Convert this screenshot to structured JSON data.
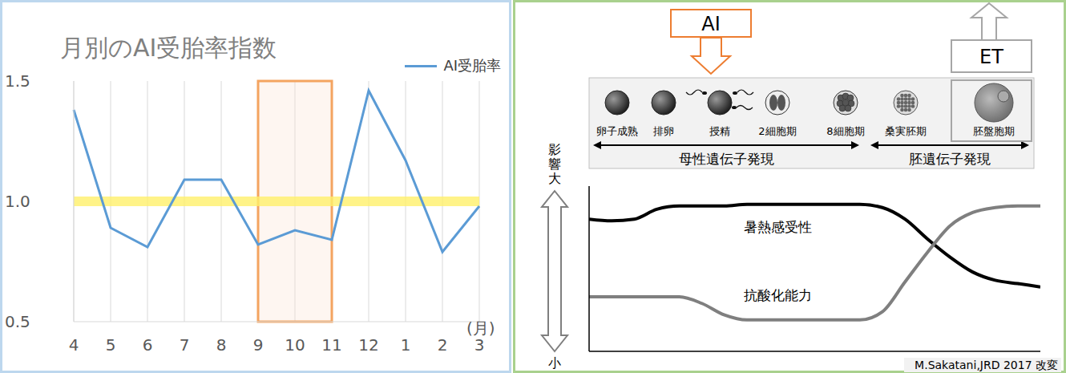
{
  "chart_data": [
    {
      "type": "line",
      "title": "月別のAI受胎率指数",
      "x_label": "(月)",
      "categories": [
        "4",
        "5",
        "6",
        "7",
        "8",
        "9",
        "10",
        "11",
        "12",
        "1",
        "2",
        "3"
      ],
      "series": [
        {
          "name": "AI受胎率",
          "color": "#5b9bd5",
          "values": [
            1.38,
            0.89,
            0.81,
            1.09,
            1.09,
            0.82,
            0.88,
            0.84,
            1.46,
            1.17,
            0.79,
            0.98
          ]
        }
      ],
      "ylim": [
        0.5,
        1.5
      ],
      "yticks": [
        0.5,
        {
          "value": 1,
          "label": "1.0"
        },
        1.5
      ],
      "grid": true,
      "legend": "upper right",
      "reference_line": 1,
      "highlight": {
        "from": "9",
        "to": "11"
      }
    },
    {
      "type": "line",
      "x": [
        0,
        5,
        10,
        15,
        20,
        25,
        30,
        35,
        40,
        50,
        60,
        65,
        70,
        75,
        80,
        85,
        90,
        95,
        100
      ],
      "series": [
        {
          "name": "暑熱感受性",
          "color": "#000000",
          "values": [
            80,
            79,
            80,
            86,
            88,
            88,
            88,
            89,
            89,
            89,
            89,
            87,
            80,
            68,
            57,
            48,
            43,
            41,
            39
          ]
        },
        {
          "name": "抗酸化能力",
          "color": "#7f7f7f",
          "values": [
            33,
            33,
            33,
            33,
            33,
            29,
            22,
            19,
            19,
            19,
            19,
            24,
            42,
            60,
            76,
            84,
            87,
            88,
            88
          ]
        }
      ],
      "xlim": [
        0,
        100
      ],
      "ylim": [
        0,
        100
      ],
      "tick_labels": false
    }
  ],
  "diagram": {
    "stages": [
      "卵子成熟",
      "排卵",
      "授精",
      "2細胞期",
      "8細胞期",
      "桑実胚期",
      "胚盤胞期"
    ],
    "phases": [
      "母性遺伝子発現",
      "胚遺伝子発現"
    ],
    "ai_label": "AI",
    "et_label": "ET",
    "y_axis": {
      "top": "影響大",
      "bottom": "小"
    },
    "source": "M.Sakatani,JRD 2017 改変"
  }
}
